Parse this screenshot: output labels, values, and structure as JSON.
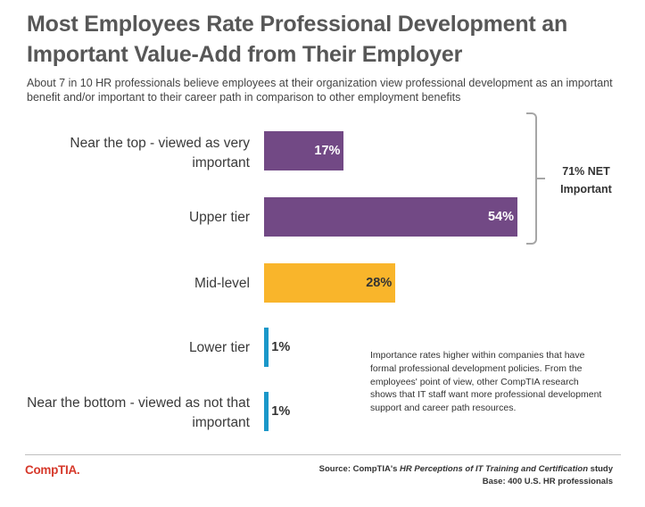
{
  "title": "Most Employees Rate Professional Development an Important Value-Add from Their Employer",
  "subtitle": "About 7 in 10 HR professionals believe employees at their organization view professional development as an important benefit and/or important to their career path in comparison to other employment benefits",
  "chart_data": {
    "type": "bar",
    "orientation": "horizontal",
    "categories": [
      "Near the top - viewed as very important",
      "Upper tier",
      "Mid-level",
      "Lower tier",
      "Near the bottom - viewed as not that important"
    ],
    "values": [
      17,
      54,
      28,
      1,
      1
    ],
    "value_labels": [
      "17%",
      "54%",
      "28%",
      "1%",
      "1%"
    ],
    "colors": [
      "#724985",
      "#724985",
      "#f9b52b",
      "#1a97c9",
      "#1a97c9"
    ],
    "xlim": [
      0,
      54
    ],
    "grid": false,
    "legend": "none",
    "bracket_label": "71% NET Important",
    "bracket_covers": [
      "Near the top - viewed as very important",
      "Upper tier"
    ]
  },
  "note": "Importance rates higher within companies that have formal professional development policies. From the employees' point of view, other CompTIA research shows that IT staff want more professional development support and career path resources.",
  "footer": {
    "logo": "CompTIA.",
    "source_prefix": "Source: CompTIA's ",
    "source_title": "HR Perceptions of IT Training and Certification",
    "source_suffix": " study",
    "base": "Base: 400 U.S. HR professionals"
  }
}
